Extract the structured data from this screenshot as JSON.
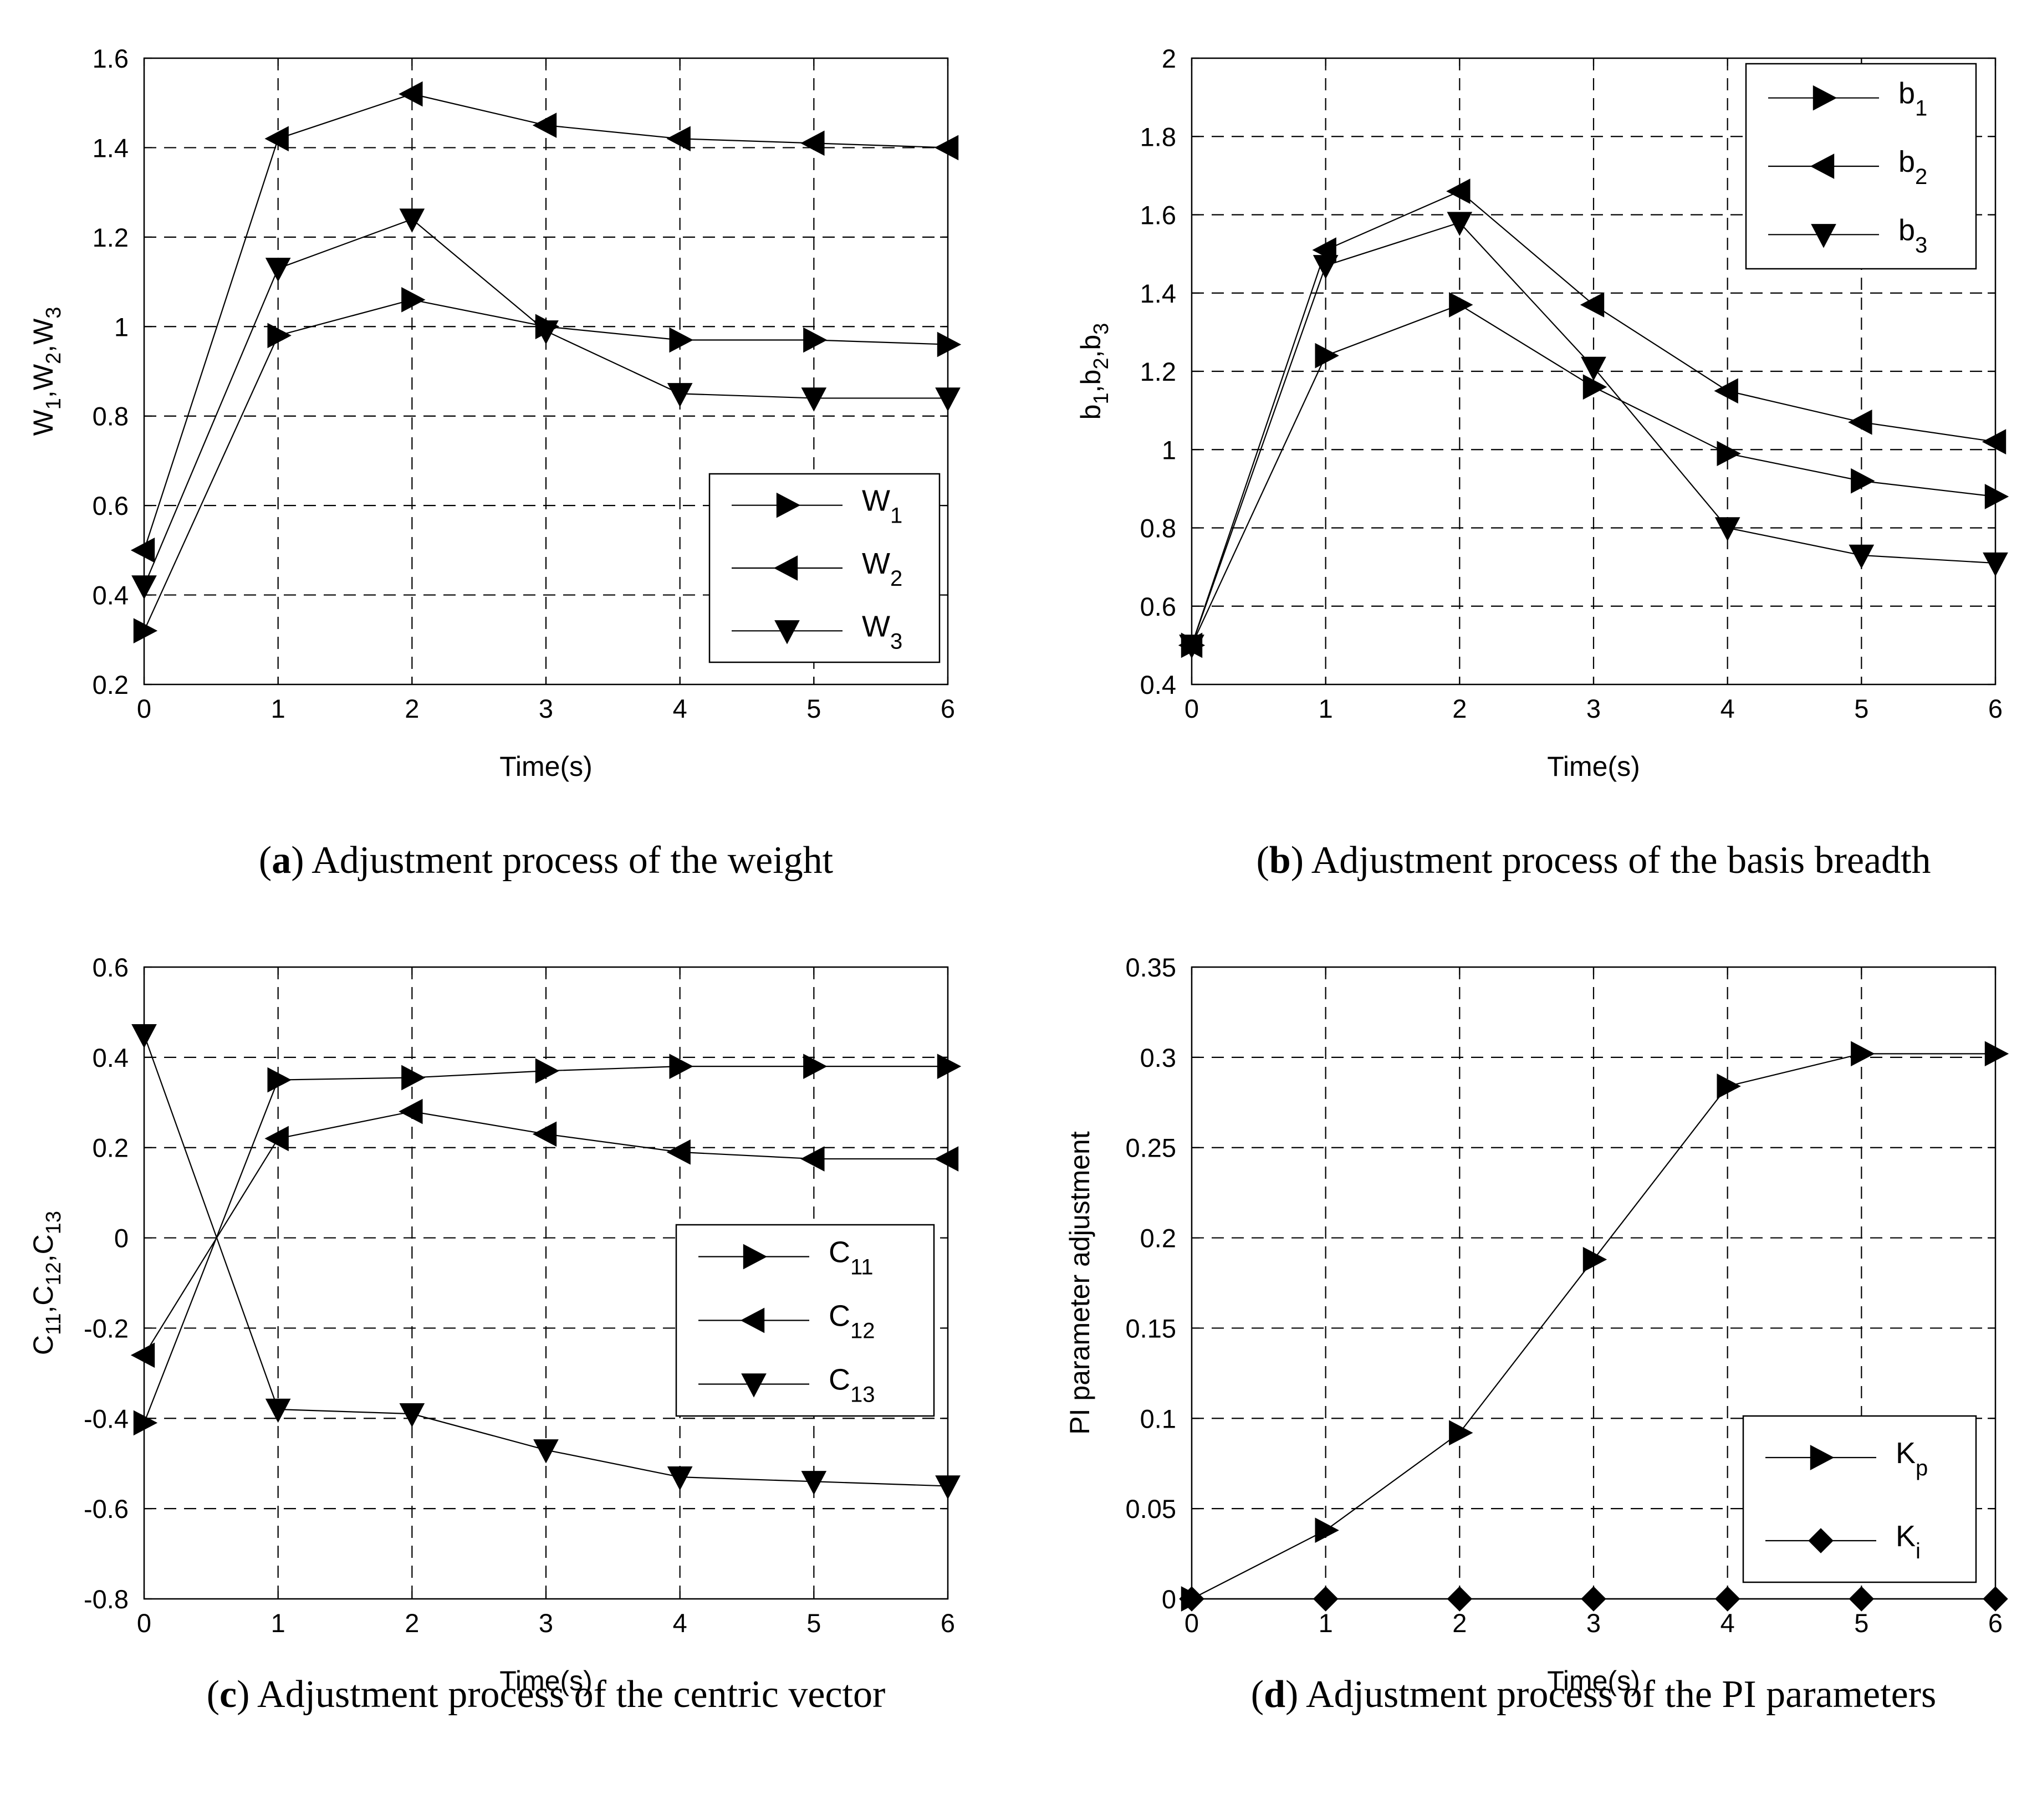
{
  "chart_data": [
    {
      "type": "line",
      "panel_label": "a",
      "caption": "Adjustment process of the weight",
      "xlabel": "Time(s)",
      "ylabel": "W1,W2,W3",
      "ylabel_parts": [
        [
          "W",
          "1"
        ],
        [
          "W",
          "2"
        ],
        [
          "W",
          "3"
        ]
      ],
      "xlim": [
        0,
        6
      ],
      "ylim": [
        0.2,
        1.6
      ],
      "xticks": [
        0,
        1,
        2,
        3,
        4,
        5,
        6
      ],
      "yticks": [
        0.2,
        0.4,
        0.6,
        0.8,
        1,
        1.2,
        1.4,
        1.6
      ],
      "ytick_labels": [
        "0.2",
        "0.4",
        "0.6",
        "0.8",
        "1",
        "1.2",
        "1.4",
        "1.6"
      ],
      "grid": true,
      "legend_position": "lower-right",
      "x": [
        0,
        1,
        2,
        3,
        4,
        5,
        6
      ],
      "series": [
        {
          "name": "W1",
          "base": "W",
          "sub": "1",
          "marker": "triangle-right",
          "values": [
            0.32,
            0.98,
            1.06,
            1.0,
            0.97,
            0.97,
            0.96
          ]
        },
        {
          "name": "W2",
          "base": "W",
          "sub": "2",
          "marker": "triangle-left",
          "values": [
            0.5,
            1.42,
            1.52,
            1.45,
            1.42,
            1.41,
            1.4
          ]
        },
        {
          "name": "W3",
          "base": "W",
          "sub": "3",
          "marker": "triangle-down",
          "values": [
            0.42,
            1.13,
            1.24,
            0.99,
            0.85,
            0.84,
            0.84
          ]
        }
      ]
    },
    {
      "type": "line",
      "panel_label": "b",
      "caption": "Adjustment process of the basis breadth",
      "xlabel": "Time(s)",
      "ylabel": "b1,b2,b3",
      "ylabel_parts": [
        [
          "b",
          "1"
        ],
        [
          "b",
          "2"
        ],
        [
          "b",
          "3"
        ]
      ],
      "xlim": [
        0,
        6
      ],
      "ylim": [
        0.4,
        2
      ],
      "xticks": [
        0,
        1,
        2,
        3,
        4,
        5,
        6
      ],
      "yticks": [
        0.4,
        0.6,
        0.8,
        1,
        1.2,
        1.4,
        1.6,
        1.8,
        2
      ],
      "ytick_labels": [
        "0.4",
        "0.6",
        "0.8",
        "1",
        "1.2",
        "1.4",
        "1.6",
        "1.8",
        "2"
      ],
      "grid": true,
      "legend_position": "top-right",
      "x": [
        0,
        1,
        2,
        3,
        4,
        5,
        6
      ],
      "series": [
        {
          "name": "b1",
          "base": "b",
          "sub": "1",
          "marker": "triangle-right",
          "values": [
            0.5,
            1.24,
            1.37,
            1.16,
            0.99,
            0.92,
            0.88
          ]
        },
        {
          "name": "b2",
          "base": "b",
          "sub": "2",
          "marker": "triangle-left",
          "values": [
            0.5,
            1.51,
            1.66,
            1.37,
            1.15,
            1.07,
            1.02
          ]
        },
        {
          "name": "b3",
          "base": "b",
          "sub": "3",
          "marker": "triangle-down",
          "values": [
            0.5,
            1.47,
            1.58,
            1.21,
            0.8,
            0.73,
            0.71
          ]
        }
      ]
    },
    {
      "type": "line",
      "panel_label": "c",
      "caption": "Adjustment process of the centric vector",
      "xlabel": "Time(s)",
      "ylabel": "C11,C12,C13",
      "ylabel_parts": [
        [
          "C",
          "11"
        ],
        [
          "C",
          "12"
        ],
        [
          "C",
          "13"
        ]
      ],
      "xlim": [
        0,
        6
      ],
      "ylim": [
        -0.8,
        0.6
      ],
      "xticks": [
        0,
        1,
        2,
        3,
        4,
        5,
        6
      ],
      "yticks": [
        -0.8,
        -0.6,
        -0.4,
        -0.2,
        0,
        0.2,
        0.4,
        0.6
      ],
      "ytick_labels": [
        "-0.8",
        "-0.6",
        "-0.4",
        "-0.2",
        "0",
        "0.2",
        "0.4",
        "0.6"
      ],
      "grid": true,
      "legend_position": "center-right",
      "x": [
        0,
        1,
        2,
        3,
        4,
        5,
        6
      ],
      "series": [
        {
          "name": "C11",
          "base": "C",
          "sub": "11",
          "marker": "triangle-right",
          "values": [
            -0.41,
            0.35,
            0.355,
            0.37,
            0.38,
            0.38,
            0.38
          ]
        },
        {
          "name": "C12",
          "base": "C",
          "sub": "12",
          "marker": "triangle-left",
          "values": [
            -0.26,
            0.22,
            0.28,
            0.23,
            0.19,
            0.175,
            0.175
          ]
        },
        {
          "name": "C13",
          "base": "C",
          "sub": "13",
          "marker": "triangle-down",
          "values": [
            0.45,
            -0.38,
            -0.39,
            -0.47,
            -0.53,
            -0.54,
            -0.55
          ]
        }
      ]
    },
    {
      "type": "line",
      "panel_label": "d",
      "caption": "Adjustment process of the PI parameters",
      "xlabel": "Time(s)",
      "ylabel": "PI parameter adjustment",
      "ylabel_parts": [],
      "xlim": [
        0,
        6
      ],
      "ylim": [
        0,
        0.35
      ],
      "xticks": [
        0,
        1,
        2,
        3,
        4,
        5,
        6
      ],
      "yticks": [
        0,
        0.05,
        0.1,
        0.15,
        0.2,
        0.25,
        0.3,
        0.35
      ],
      "ytick_labels": [
        "0",
        "0.05",
        "0.1",
        "0.15",
        "0.2",
        "0.25",
        "0.3",
        "0.35"
      ],
      "grid": true,
      "legend_position": "lower-right",
      "x": [
        0,
        1,
        2,
        3,
        4,
        5,
        6
      ],
      "series": [
        {
          "name": "Kp",
          "base": "K",
          "sub": "p",
          "marker": "triangle-right",
          "values": [
            0,
            0.038,
            0.092,
            0.188,
            0.284,
            0.302,
            0.302
          ]
        },
        {
          "name": "Ki",
          "base": "K",
          "sub": "i",
          "marker": "diamond",
          "values": [
            0,
            0,
            0,
            0,
            0,
            0,
            0
          ]
        }
      ]
    }
  ]
}
